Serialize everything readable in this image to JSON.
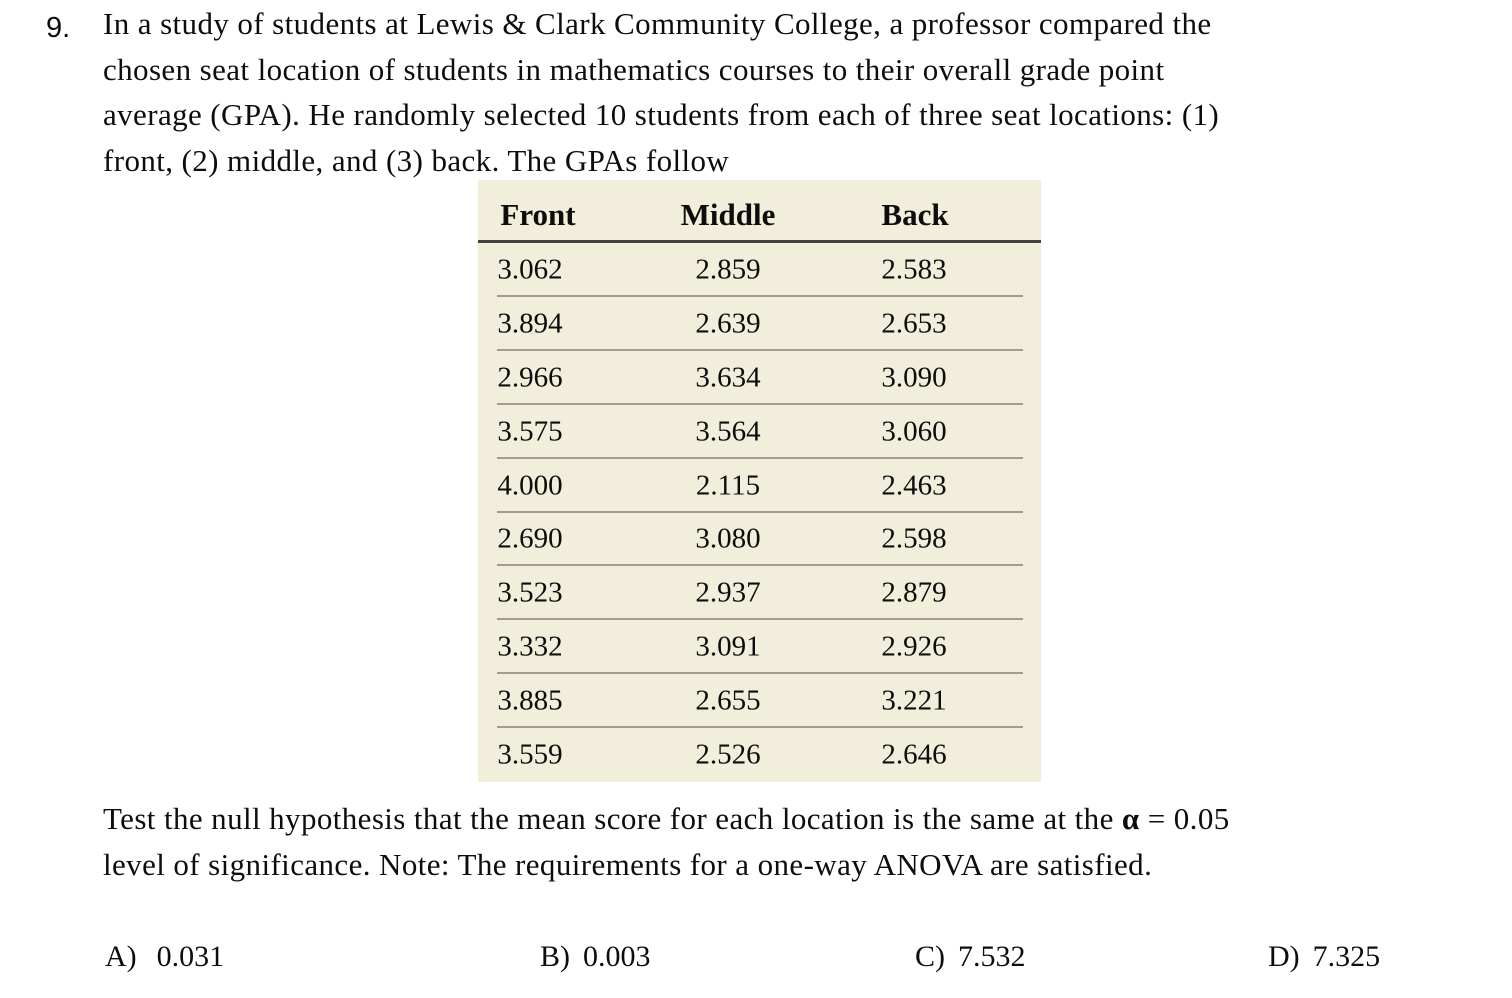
{
  "question": {
    "number": "9.",
    "lines": [
      "In a study of students at Lewis & Clark Community College, a professor compared the",
      "chosen seat location of students in mathematics courses to their overall grade point",
      "average (GPA). He randomly selected 10 students from each of three seat locations: (1)",
      "front, (2) middle, and (3) back. The GPAs follow"
    ]
  },
  "table": {
    "columns": [
      "Front",
      "Middle",
      "Back"
    ],
    "rows": [
      [
        "3.062",
        "2.859",
        "2.583"
      ],
      [
        "3.894",
        "2.639",
        "2.653"
      ],
      [
        "2.966",
        "3.634",
        "3.090"
      ],
      [
        "3.575",
        "3.564",
        "3.060"
      ],
      [
        "4.000",
        "2.115",
        "2.463"
      ],
      [
        "2.690",
        "3.080",
        "2.598"
      ],
      [
        "3.523",
        "2.937",
        "2.879"
      ],
      [
        "3.332",
        "3.091",
        "2.926"
      ],
      [
        "3.885",
        "2.655",
        "3.221"
      ],
      [
        "3.559",
        "2.526",
        "2.646"
      ]
    ],
    "colors": {
      "background": "#f1eedb",
      "header_rule": "#44443f",
      "row_rule": "#a09d92"
    }
  },
  "instruction": {
    "line1_before_alpha": "Test the null hypothesis that the mean score for each location is the same at the ",
    "alpha_symbol": "α",
    "line1_after_alpha": " = 0.05",
    "line2": "level of significance. Note: The requirements for a one-way ANOVA are satisfied."
  },
  "answers": [
    {
      "label": "A)",
      "value": "0.031"
    },
    {
      "label": "B)",
      "value": "0.003"
    },
    {
      "label": "C)",
      "value": "7.532"
    },
    {
      "label": "D)",
      "value": "7.325"
    }
  ]
}
